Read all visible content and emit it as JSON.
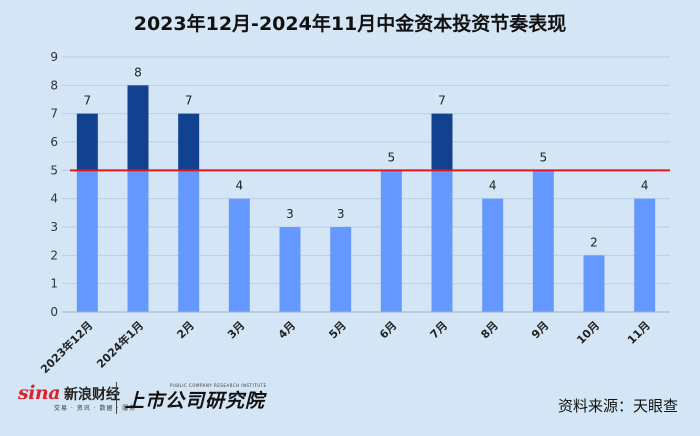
{
  "title": "2023年12月-2024年11月中金资本投资节奏表现",
  "chart_data": {
    "type": "bar",
    "categories": [
      "2023年12月",
      "2024年1月",
      "2月",
      "3月",
      "4月",
      "5月",
      "6月",
      "7月",
      "8月",
      "9月",
      "10月",
      "11月"
    ],
    "values": [
      7,
      8,
      7,
      4,
      3,
      3,
      5,
      7,
      4,
      5,
      2,
      4
    ],
    "ylim": [
      0,
      9
    ],
    "yticks": [
      0,
      1,
      2,
      3,
      4,
      5,
      6,
      7,
      8,
      9
    ],
    "reference_line": 5,
    "colors": {
      "below_reference": "#6699ff",
      "above_reference": "#12418f",
      "reference_line": "#e8141b",
      "gridline": "#b7cfe6"
    },
    "grid": true,
    "legend": "none"
  },
  "footer": {
    "sina_logo": "sina",
    "sina_name": "新浪财经",
    "sina_tagline": "交易 · 资讯 · 数据 · 服务",
    "institute_name": "上市公司研究院",
    "institute_en": "PUBLIC COMPANY RESEARCH INSTITUTE",
    "source": "资料来源：天眼查"
  }
}
